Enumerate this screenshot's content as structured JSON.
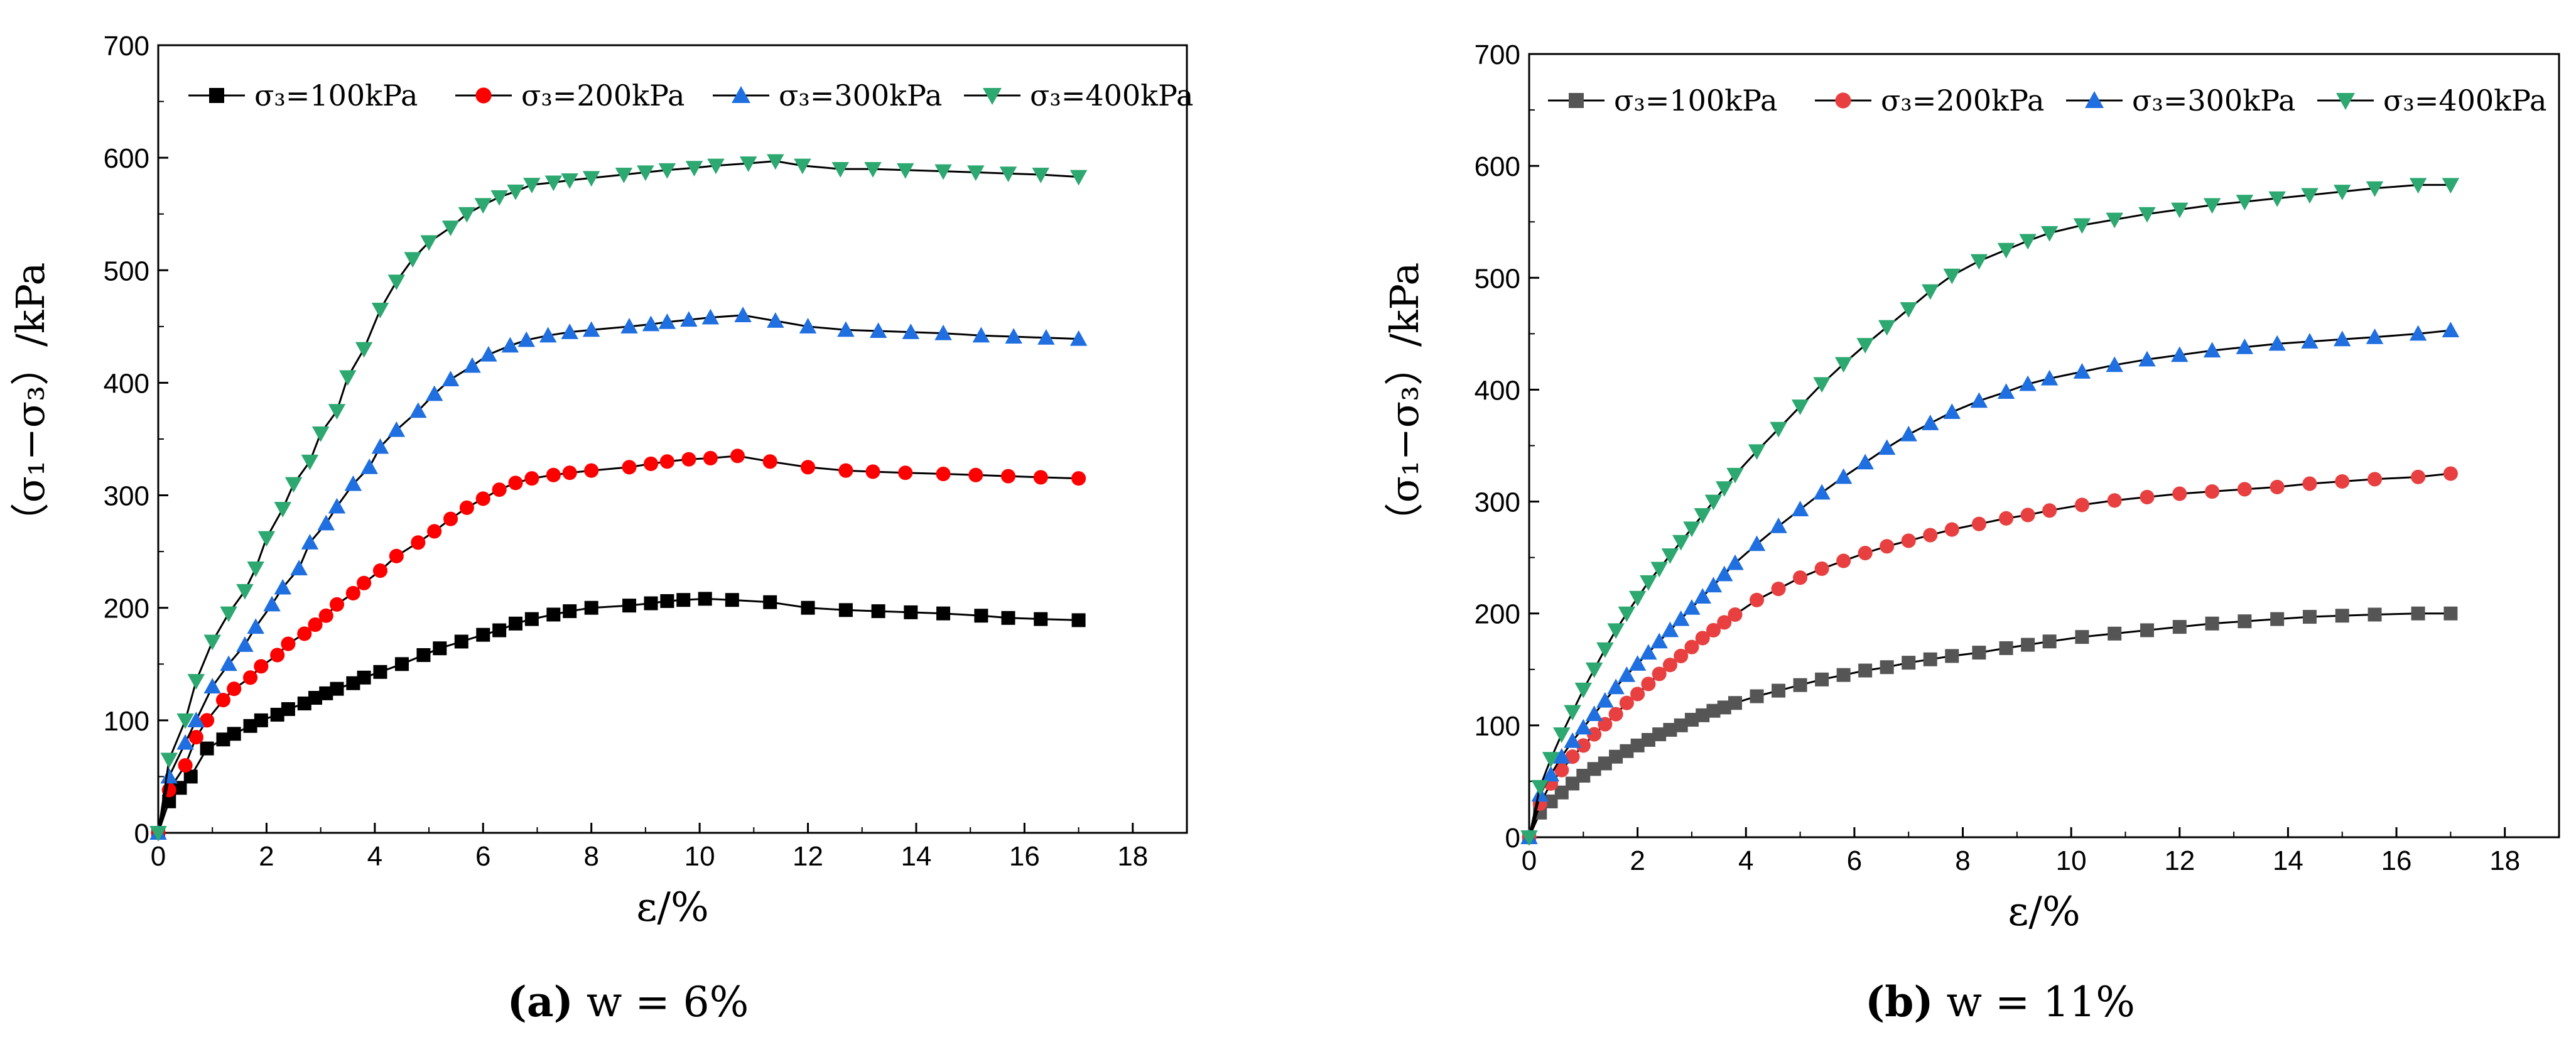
{
  "chart_data": [
    {
      "type": "line",
      "panel": "a",
      "caption_bold": "(a)",
      "caption_rest": " w = 6%",
      "xlabel": "ε/%",
      "ylabel": "（σ₁−σ₃）/kPa",
      "xlim": [
        0,
        19
      ],
      "ylim": [
        0,
        700
      ],
      "xticks": [
        0,
        2,
        4,
        6,
        8,
        10,
        12,
        14,
        16,
        18
      ],
      "yticks": [
        0,
        100,
        200,
        300,
        400,
        500,
        600,
        700
      ],
      "grid": false,
      "legend_position": "top",
      "series": [
        {
          "name": "σ₃=100kPa",
          "marker": "square",
          "color": "#000000",
          "x": [
            0,
            0.2,
            0.4,
            0.6,
            0.9,
            1.2,
            1.4,
            1.7,
            1.9,
            2.2,
            2.4,
            2.7,
            2.9,
            3.1,
            3.3,
            3.6,
            3.8,
            4.1,
            4.5,
            4.9,
            5.2,
            5.6,
            6,
            6.3,
            6.6,
            6.9,
            7.3,
            7.6,
            8,
            8.7,
            9.1,
            9.4,
            9.7,
            10.1,
            10.6,
            11.3,
            12,
            12.7,
            13.3,
            13.9,
            14.5,
            15.2,
            15.7,
            16.3,
            17
          ],
          "y": [
            0,
            28,
            40,
            50,
            75,
            83,
            88,
            95,
            100,
            105,
            110,
            115,
            120,
            124,
            128,
            133,
            138,
            143,
            150,
            158,
            164,
            170,
            176,
            180,
            186,
            190,
            194,
            197,
            200,
            202,
            204,
            206,
            207,
            208,
            207,
            205,
            200,
            198,
            197,
            196,
            195,
            193,
            191,
            190,
            189
          ]
        },
        {
          "name": "σ₃=200kPa",
          "marker": "circle",
          "color": "#ff0000",
          "x": [
            0,
            0.2,
            0.5,
            0.7,
            0.9,
            1.2,
            1.4,
            1.7,
            1.9,
            2.2,
            2.4,
            2.7,
            2.9,
            3.1,
            3.3,
            3.6,
            3.8,
            4.1,
            4.4,
            4.8,
            5.1,
            5.4,
            5.7,
            6,
            6.3,
            6.6,
            6.9,
            7.3,
            7.6,
            8,
            8.7,
            9.1,
            9.4,
            9.8,
            10.2,
            10.7,
            11.3,
            12,
            12.7,
            13.2,
            13.8,
            14.5,
            15.1,
            15.7,
            16.3,
            17
          ],
          "y": [
            0,
            38,
            60,
            85,
            100,
            118,
            128,
            138,
            148,
            158,
            168,
            177,
            185,
            193,
            203,
            213,
            222,
            233,
            246,
            258,
            268,
            279,
            289,
            297,
            305,
            311,
            315,
            318,
            320,
            322,
            325,
            328,
            330,
            332,
            333,
            335,
            330,
            325,
            322,
            321,
            320,
            319,
            318,
            317,
            316,
            315
          ]
        },
        {
          "name": "σ₃=300kPa",
          "marker": "triangle-up",
          "color": "#1f6fe0",
          "x": [
            0,
            0.2,
            0.5,
            0.7,
            1,
            1.3,
            1.6,
            1.8,
            2.1,
            2.3,
            2.6,
            2.8,
            3.1,
            3.3,
            3.6,
            3.9,
            4.1,
            4.4,
            4.8,
            5.1,
            5.4,
            5.8,
            6.1,
            6.5,
            6.8,
            7.2,
            7.6,
            8,
            8.7,
            9.1,
            9.4,
            9.8,
            10.2,
            10.8,
            11.4,
            12,
            12.7,
            13.3,
            13.9,
            14.5,
            15.2,
            15.8,
            16.4,
            17
          ],
          "y": [
            0,
            50,
            80,
            100,
            130,
            150,
            167,
            183,
            203,
            218,
            235,
            258,
            275,
            290,
            310,
            325,
            343,
            358,
            375,
            390,
            403,
            415,
            425,
            433,
            438,
            442,
            445,
            447,
            450,
            452,
            454,
            456,
            458,
            460,
            455,
            450,
            447,
            446,
            445,
            444,
            442,
            441,
            440,
            439
          ]
        },
        {
          "name": "σ₃=400kPa",
          "marker": "triangle-down",
          "color": "#2ca870",
          "x": [
            0,
            0.2,
            0.5,
            0.7,
            1,
            1.3,
            1.6,
            1.8,
            2,
            2.3,
            2.5,
            2.8,
            3,
            3.3,
            3.5,
            3.8,
            4.1,
            4.4,
            4.7,
            5,
            5.4,
            5.7,
            6,
            6.3,
            6.6,
            6.9,
            7.3,
            7.6,
            8,
            8.6,
            9,
            9.4,
            9.9,
            10.3,
            10.9,
            11.4,
            11.9,
            12.6,
            13.2,
            13.8,
            14.5,
            15.1,
            15.7,
            16.3,
            17
          ],
          "y": [
            0,
            65,
            100,
            135,
            170,
            195,
            215,
            235,
            262,
            288,
            310,
            330,
            355,
            375,
            405,
            430,
            465,
            490,
            510,
            525,
            538,
            550,
            558,
            565,
            570,
            576,
            578,
            580,
            582,
            585,
            587,
            589,
            591,
            593,
            595,
            597,
            593,
            590,
            590,
            589,
            588,
            587,
            586,
            585,
            583
          ]
        }
      ]
    },
    {
      "type": "line",
      "panel": "b",
      "caption_bold": "(b)",
      "caption_rest": " w = 11%",
      "xlabel": "ε/%",
      "ylabel": "（σ₁−σ₃）/kPa",
      "xlim": [
        0,
        19
      ],
      "ylim": [
        0,
        700
      ],
      "xticks": [
        0,
        2,
        4,
        6,
        8,
        10,
        12,
        14,
        16,
        18
      ],
      "yticks": [
        0,
        100,
        200,
        300,
        400,
        500,
        600,
        700
      ],
      "grid": false,
      "legend_position": "top",
      "series": [
        {
          "name": "σ₃=100kPa",
          "marker": "square",
          "color": "#555555",
          "x": [
            0,
            0.2,
            0.4,
            0.6,
            0.8,
            1,
            1.2,
            1.4,
            1.6,
            1.8,
            2,
            2.2,
            2.4,
            2.6,
            2.8,
            3,
            3.2,
            3.4,
            3.6,
            3.8,
            4.2,
            4.6,
            5,
            5.4,
            5.8,
            6.2,
            6.6,
            7,
            7.4,
            7.8,
            8.3,
            8.8,
            9.2,
            9.6,
            10.2,
            10.8,
            11.4,
            12,
            12.6,
            13.2,
            13.8,
            14.4,
            15,
            15.6,
            16.4,
            17
          ],
          "y": [
            0,
            22,
            32,
            40,
            48,
            55,
            61,
            66,
            72,
            77,
            82,
            87,
            92,
            96,
            100,
            105,
            109,
            113,
            116,
            120,
            126,
            131,
            136,
            141,
            145,
            149,
            152,
            156,
            159,
            162,
            165,
            169,
            172,
            175,
            179,
            182,
            185,
            188,
            191,
            193,
            195,
            197,
            198,
            199,
            200,
            200
          ]
        },
        {
          "name": "σ₃=200kPa",
          "marker": "circle",
          "color": "#e84040",
          "x": [
            0,
            0.2,
            0.4,
            0.6,
            0.8,
            1,
            1.2,
            1.4,
            1.6,
            1.8,
            2,
            2.2,
            2.4,
            2.6,
            2.8,
            3,
            3.2,
            3.4,
            3.6,
            3.8,
            4.2,
            4.6,
            5,
            5.4,
            5.8,
            6.2,
            6.6,
            7,
            7.4,
            7.8,
            8.3,
            8.8,
            9.2,
            9.6,
            10.2,
            10.8,
            11.4,
            12,
            12.6,
            13.2,
            13.8,
            14.4,
            15,
            15.6,
            16.4,
            17
          ],
          "y": [
            0,
            30,
            48,
            60,
            72,
            82,
            92,
            101,
            110,
            120,
            128,
            137,
            146,
            154,
            162,
            170,
            178,
            185,
            192,
            199,
            212,
            222,
            232,
            240,
            247,
            254,
            260,
            265,
            270,
            275,
            280,
            285,
            288,
            292,
            297,
            301,
            304,
            307,
            309,
            311,
            313,
            316,
            318,
            320,
            322,
            325
          ]
        },
        {
          "name": "σ₃=300kPa",
          "marker": "triangle-up",
          "color": "#1f6fe0",
          "x": [
            0,
            0.2,
            0.4,
            0.6,
            0.8,
            1,
            1.2,
            1.4,
            1.6,
            1.8,
            2,
            2.2,
            2.4,
            2.6,
            2.8,
            3,
            3.2,
            3.4,
            3.6,
            3.8,
            4.2,
            4.6,
            5,
            5.4,
            5.8,
            6.2,
            6.6,
            7,
            7.4,
            7.8,
            8.3,
            8.8,
            9.2,
            9.6,
            10.2,
            10.8,
            11.4,
            12,
            12.6,
            13.2,
            13.8,
            14.4,
            15,
            15.6,
            16.4,
            17
          ],
          "y": [
            0,
            38,
            56,
            72,
            86,
            98,
            110,
            122,
            134,
            145,
            155,
            165,
            175,
            185,
            195,
            205,
            215,
            225,
            235,
            245,
            262,
            278,
            293,
            308,
            322,
            335,
            348,
            360,
            370,
            380,
            390,
            398,
            405,
            410,
            416,
            422,
            427,
            431,
            435,
            438,
            441,
            443,
            445,
            447,
            450,
            453
          ]
        },
        {
          "name": "σ₃=400kPa",
          "marker": "triangle-down",
          "color": "#2ca870",
          "x": [
            0,
            0.2,
            0.4,
            0.6,
            0.8,
            1,
            1.2,
            1.4,
            1.6,
            1.8,
            2,
            2.2,
            2.4,
            2.6,
            2.8,
            3,
            3.2,
            3.4,
            3.6,
            3.8,
            4.2,
            4.6,
            5,
            5.4,
            5.8,
            6.2,
            6.6,
            7,
            7.4,
            7.8,
            8.3,
            8.8,
            9.2,
            9.6,
            10.2,
            10.8,
            11.4,
            12,
            12.6,
            13.2,
            13.8,
            14.4,
            15,
            15.6,
            16.4,
            17
          ],
          "y": [
            0,
            45,
            70,
            92,
            112,
            132,
            150,
            168,
            185,
            200,
            214,
            228,
            240,
            252,
            264,
            276,
            288,
            300,
            312,
            324,
            345,
            365,
            385,
            405,
            423,
            440,
            456,
            472,
            488,
            502,
            515,
            525,
            533,
            540,
            547,
            552,
            557,
            561,
            565,
            568,
            571,
            574,
            577,
            580,
            583,
            583
          ]
        }
      ]
    }
  ]
}
